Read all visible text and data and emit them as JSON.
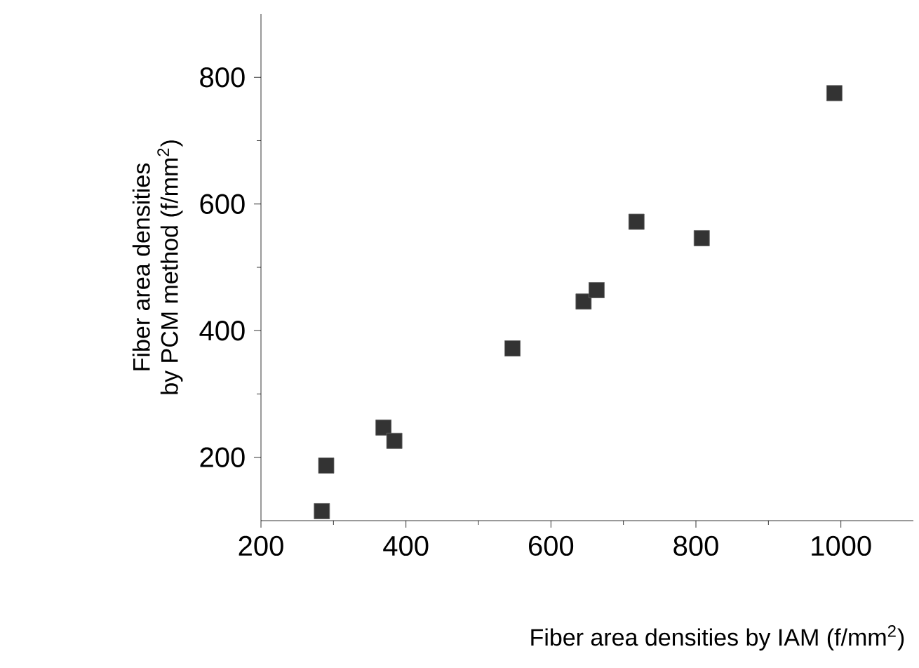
{
  "chart_data": {
    "type": "scatter",
    "xlabel": "Fiber area densities by IAM (f/mm$^{2}$)",
    "ylabel": "Fiber area densities\nby PCM method (f/mm$^{2}$)",
    "x": [
      284,
      290,
      369,
      384,
      547,
      645,
      663,
      718,
      808,
      991
    ],
    "series": [
      {
        "color": "#333333",
        "values": [
          115,
          187,
          247,
          226,
          372,
          446,
          464,
          572,
          546,
          775
        ]
      }
    ],
    "marker": "square",
    "xlim": [
      200,
      1100
    ],
    "ylim": [
      100,
      900
    ],
    "xticks": [
      200,
      400,
      600,
      800,
      1000
    ],
    "yticks": [
      200,
      400,
      600,
      800
    ]
  }
}
